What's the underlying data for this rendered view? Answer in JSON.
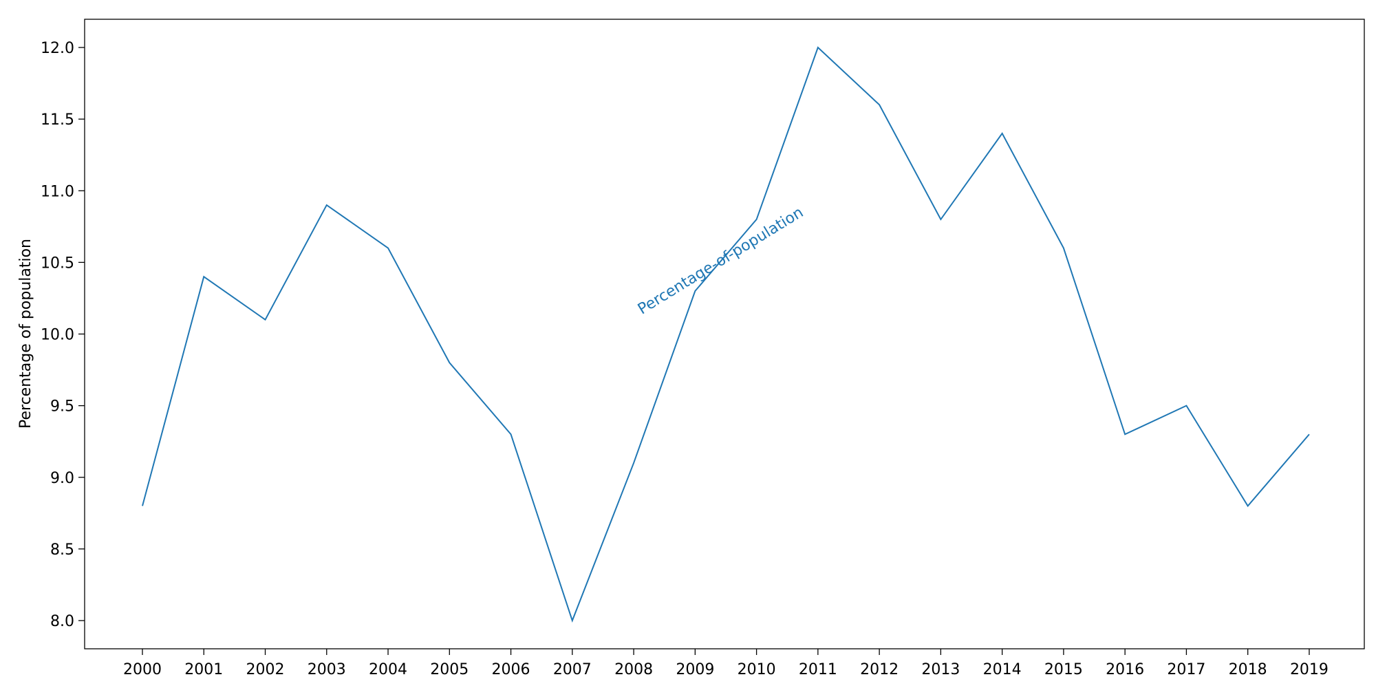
{
  "chart_data": {
    "type": "line",
    "title": "",
    "xlabel": "",
    "ylabel": "Percentage of population",
    "x": [
      "2000",
      "2001",
      "2002",
      "2003",
      "2004",
      "2005",
      "2006",
      "2007",
      "2008",
      "2009",
      "2010",
      "2011",
      "2012",
      "2013",
      "2014",
      "2015",
      "2016",
      "2017",
      "2018",
      "2019"
    ],
    "series": [
      {
        "values": [
          8.8,
          10.4,
          10.1,
          10.9,
          10.6,
          9.8,
          9.3,
          8.0,
          9.1,
          10.3,
          10.8,
          12.0,
          11.6,
          10.8,
          11.4,
          10.6,
          9.3,
          9.5,
          8.8,
          9.3
        ],
        "color": "#1f77b4"
      }
    ],
    "annotation": {
      "text": "Percentage-of-population",
      "color": "#1f77b4"
    },
    "yticks": [
      "8.0",
      "8.5",
      "9.0",
      "9.5",
      "10.0",
      "10.5",
      "11.0",
      "11.5",
      "12.0"
    ],
    "ylim": [
      7.8,
      12.1
    ],
    "grid": false,
    "legend": "none"
  }
}
